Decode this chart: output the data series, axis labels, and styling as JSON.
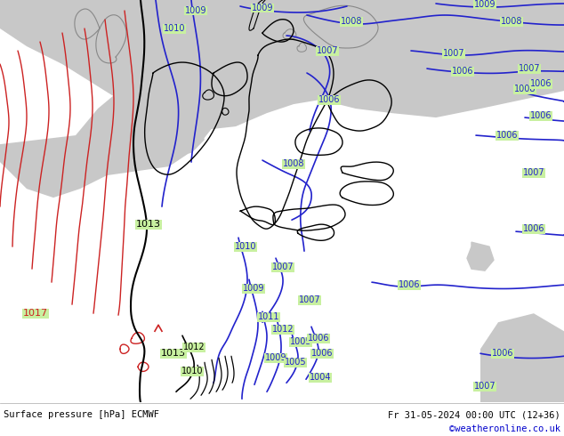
{
  "title_left": "Surface pressure [hPa] ECMWF",
  "title_right": "Fr 31-05-2024 00:00 UTC (12+36)",
  "copyright": "©weatheronline.co.uk",
  "land_color": "#c8f0a0",
  "sea_color": "#c8c8c8",
  "blue_color": "#2222cc",
  "red_color": "#cc2222",
  "black_color": "#000000",
  "gray_border": "#888888",
  "white": "#ffffff",
  "copyright_color": "#0000cc",
  "figsize": [
    6.34,
    4.9
  ],
  "dpi": 100
}
